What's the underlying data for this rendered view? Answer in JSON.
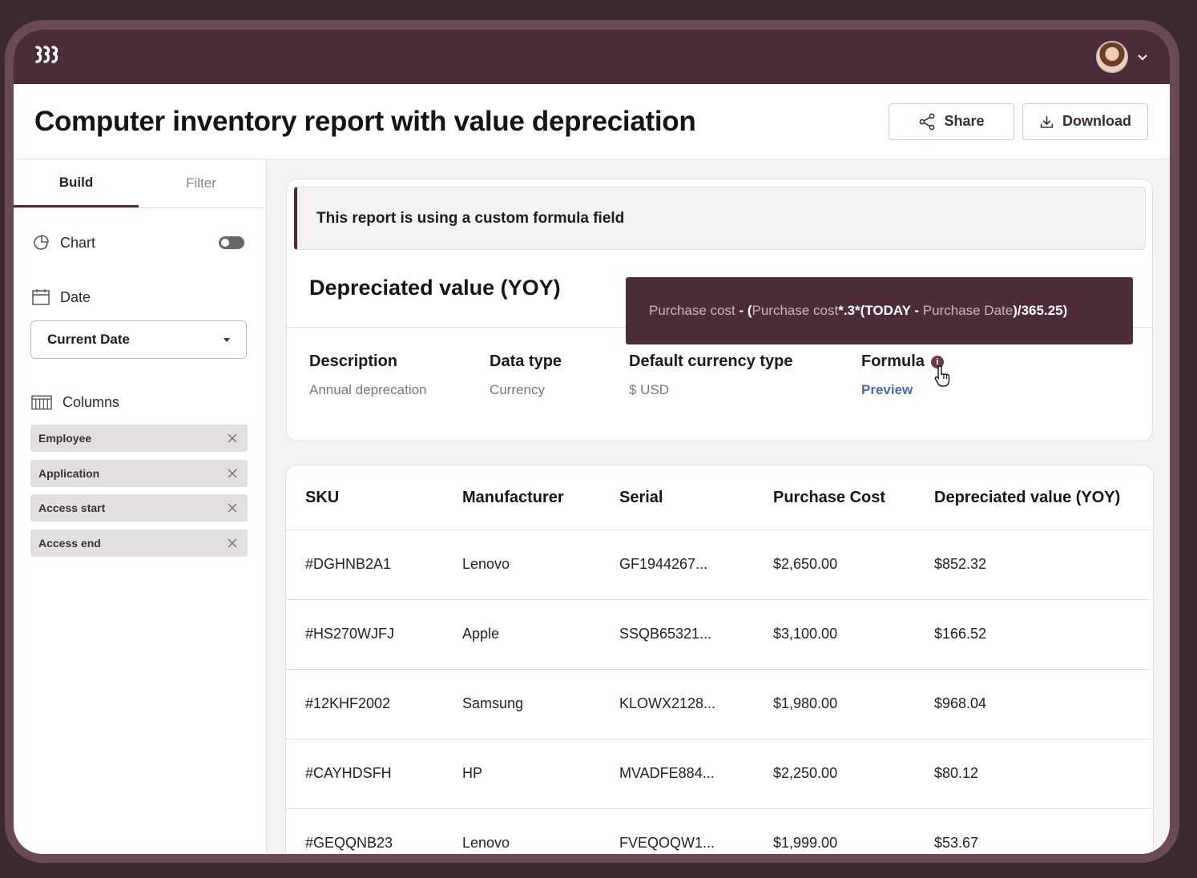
{
  "app": {
    "logo_text": "𝟹𝟹𝟹",
    "logo_icon": "rippling-logo-icon",
    "user_menu_icon": "chevron-down-icon"
  },
  "header": {
    "title": "Computer inventory report with value depreciation",
    "share_label": "Share",
    "download_label": "Download"
  },
  "sidebar": {
    "tabs": [
      {
        "label": "Build",
        "active": true
      },
      {
        "label": "Filter",
        "active": false
      }
    ],
    "chart_label": "Chart",
    "chart_toggle_on": false,
    "date_label": "Date",
    "date_select_value": "Current Date",
    "columns_label": "Columns",
    "columns": [
      "Employee",
      "Application",
      "Access start",
      "Access end"
    ]
  },
  "formula_card": {
    "notice": "This report is using a custom formula field",
    "field_title": "Depreciated value (YOY)",
    "description_label": "Description",
    "description_value": "Annual deprecation",
    "data_type_label": "Data type",
    "data_type_value": "Currency",
    "currency_label": "Default currency type",
    "currency_value": "$ USD",
    "formula_label": "Formula",
    "formula_link": "Preview",
    "tooltip": {
      "f1": "Purchase cost",
      "op1": " - (",
      "f2": "Purchase cost",
      "op2": "*.3*(TODAY - ",
      "f3": "Purchase Date",
      "op3": ")/365.25)"
    }
  },
  "table": {
    "headers": [
      "SKU",
      "Manufacturer",
      "Serial",
      "Purchase Cost",
      "Depreciated value (YOY)"
    ],
    "rows": [
      [
        "#DGHNB2A1",
        "Lenovo",
        "GF1944267...",
        "$2,650.00",
        "$852.32"
      ],
      [
        "#HS270WJFJ",
        "Apple",
        "SSQB65321...",
        "$3,100.00",
        "$166.52"
      ],
      [
        "#12KHF2002",
        "Samsung",
        "KLOWX2128...",
        "$1,980.00",
        "$968.04"
      ],
      [
        "#CAYHDSFH",
        "HP",
        "MVADFE884...",
        "$2,250.00",
        "$80.12"
      ],
      [
        "#GEQQNB23",
        "Lenovo",
        "FVEQOQW1...",
        "$1,999.00",
        "$53.67"
      ]
    ]
  },
  "colors": {
    "brand": "#4b2c38",
    "link": "#4a67a6",
    "background": "#3b2a31"
  }
}
